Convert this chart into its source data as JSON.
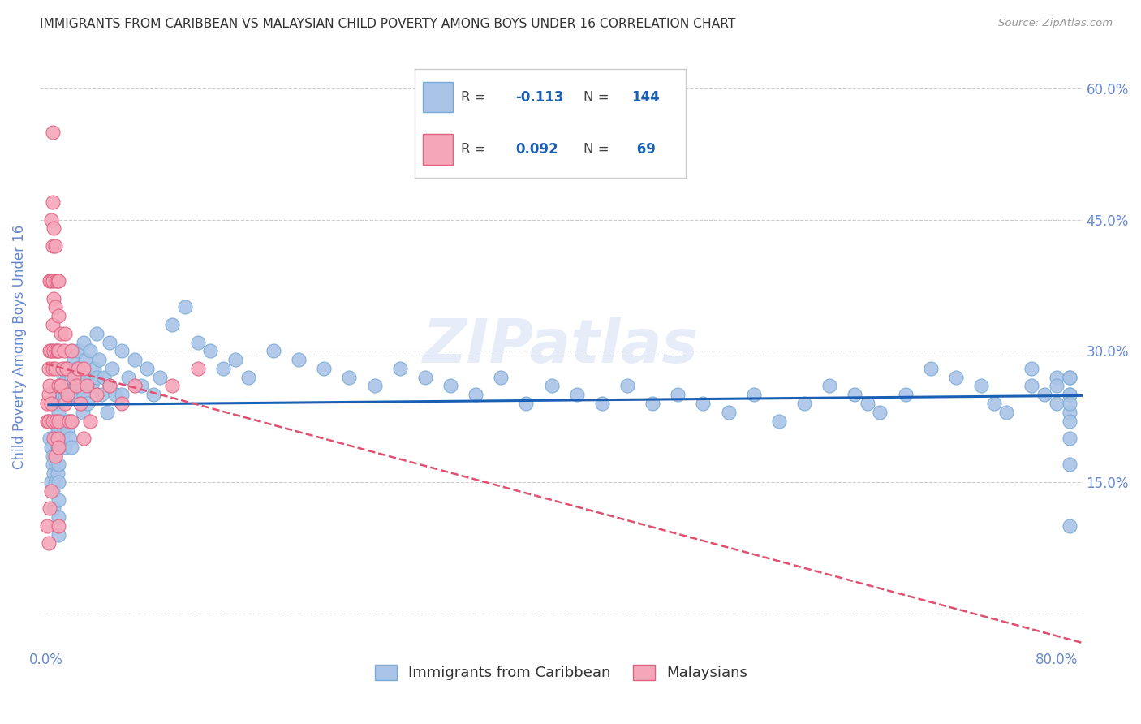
{
  "title": "IMMIGRANTS FROM CARIBBEAN VS MALAYSIAN CHILD POVERTY AMONG BOYS UNDER 16 CORRELATION CHART",
  "source": "Source: ZipAtlas.com",
  "ylabel": "Child Poverty Among Boys Under 16",
  "yticks": [
    0.0,
    0.15,
    0.3,
    0.45,
    0.6
  ],
  "ytick_labels_right": [
    "",
    "15.0%",
    "30.0%",
    "45.0%",
    "60.0%"
  ],
  "xlim": [
    -0.005,
    0.82
  ],
  "ylim": [
    -0.04,
    0.65
  ],
  "watermark": "ZIPatlas",
  "legend": {
    "caribbean_label": "Immigrants from Caribbean",
    "malaysian_label": "Malaysians"
  },
  "caribbean_color": "#aac4e8",
  "malaysian_color": "#f4a7b9",
  "caribbean_edge": "#7aaad4",
  "malaysian_edge": "#e06080",
  "trendline_caribbean_color": "#1a5fb4",
  "trendline_malaysian_color": "#e05070",
  "background_color": "#ffffff",
  "grid_color": "#cccccc",
  "axis_label_color": "#6688cc",
  "caribbean_x": [
    0.002,
    0.003,
    0.004,
    0.004,
    0.005,
    0.005,
    0.005,
    0.006,
    0.006,
    0.007,
    0.007,
    0.007,
    0.008,
    0.008,
    0.008,
    0.009,
    0.009,
    0.009,
    0.009,
    0.01,
    0.01,
    0.01,
    0.01,
    0.01,
    0.01,
    0.01,
    0.01,
    0.01,
    0.012,
    0.012,
    0.013,
    0.013,
    0.014,
    0.014,
    0.015,
    0.015,
    0.015,
    0.016,
    0.016,
    0.017,
    0.017,
    0.018,
    0.018,
    0.019,
    0.019,
    0.02,
    0.02,
    0.02,
    0.02,
    0.02,
    0.022,
    0.023,
    0.024,
    0.025,
    0.025,
    0.026,
    0.027,
    0.028,
    0.029,
    0.03,
    0.03,
    0.031,
    0.032,
    0.033,
    0.035,
    0.036,
    0.038,
    0.04,
    0.04,
    0.042,
    0.044,
    0.046,
    0.048,
    0.05,
    0.05,
    0.052,
    0.055,
    0.06,
    0.06,
    0.065,
    0.07,
    0.075,
    0.08,
    0.085,
    0.09,
    0.1,
    0.11,
    0.12,
    0.13,
    0.14,
    0.15,
    0.16,
    0.18,
    0.2,
    0.22,
    0.24,
    0.26,
    0.28,
    0.3,
    0.32,
    0.34,
    0.36,
    0.38,
    0.4,
    0.42,
    0.44,
    0.46,
    0.48,
    0.5,
    0.52,
    0.54,
    0.56,
    0.58,
    0.6,
    0.62,
    0.64,
    0.65,
    0.66,
    0.68,
    0.7,
    0.72,
    0.74,
    0.75,
    0.76,
    0.78,
    0.78,
    0.79,
    0.8,
    0.8,
    0.8,
    0.81,
    0.81,
    0.81,
    0.81,
    0.81,
    0.81,
    0.81,
    0.81,
    0.81,
    0.81
  ],
  "caribbean_y": [
    0.22,
    0.2,
    0.19,
    0.15,
    0.18,
    0.17,
    0.14,
    0.16,
    0.12,
    0.2,
    0.18,
    0.15,
    0.22,
    0.2,
    0.17,
    0.24,
    0.21,
    0.19,
    0.16,
    0.25,
    0.23,
    0.21,
    0.19,
    0.17,
    0.15,
    0.13,
    0.11,
    0.09,
    0.26,
    0.22,
    0.25,
    0.2,
    0.27,
    0.21,
    0.28,
    0.25,
    0.19,
    0.27,
    0.22,
    0.26,
    0.21,
    0.28,
    0.22,
    0.25,
    0.2,
    0.3,
    0.27,
    0.25,
    0.22,
    0.19,
    0.29,
    0.26,
    0.28,
    0.3,
    0.25,
    0.27,
    0.24,
    0.26,
    0.23,
    0.31,
    0.25,
    0.29,
    0.27,
    0.24,
    0.3,
    0.26,
    0.28,
    0.32,
    0.27,
    0.29,
    0.25,
    0.27,
    0.23,
    0.31,
    0.26,
    0.28,
    0.25,
    0.3,
    0.25,
    0.27,
    0.29,
    0.26,
    0.28,
    0.25,
    0.27,
    0.33,
    0.35,
    0.31,
    0.3,
    0.28,
    0.29,
    0.27,
    0.3,
    0.29,
    0.28,
    0.27,
    0.26,
    0.28,
    0.27,
    0.26,
    0.25,
    0.27,
    0.24,
    0.26,
    0.25,
    0.24,
    0.26,
    0.24,
    0.25,
    0.24,
    0.23,
    0.25,
    0.22,
    0.24,
    0.26,
    0.25,
    0.24,
    0.23,
    0.25,
    0.28,
    0.27,
    0.26,
    0.24,
    0.23,
    0.28,
    0.26,
    0.25,
    0.27,
    0.26,
    0.24,
    0.27,
    0.25,
    0.23,
    0.1,
    0.17,
    0.2,
    0.25,
    0.27,
    0.24,
    0.22
  ],
  "malaysian_x": [
    0.001,
    0.001,
    0.001,
    0.002,
    0.002,
    0.002,
    0.002,
    0.003,
    0.003,
    0.003,
    0.003,
    0.004,
    0.004,
    0.004,
    0.004,
    0.004,
    0.005,
    0.005,
    0.005,
    0.005,
    0.005,
    0.005,
    0.005,
    0.006,
    0.006,
    0.006,
    0.006,
    0.007,
    0.007,
    0.007,
    0.007,
    0.008,
    0.008,
    0.008,
    0.009,
    0.009,
    0.009,
    0.01,
    0.01,
    0.01,
    0.01,
    0.01,
    0.01,
    0.01,
    0.012,
    0.012,
    0.013,
    0.014,
    0.015,
    0.015,
    0.016,
    0.017,
    0.018,
    0.02,
    0.02,
    0.022,
    0.024,
    0.025,
    0.027,
    0.03,
    0.03,
    0.032,
    0.035,
    0.04,
    0.05,
    0.06,
    0.07,
    0.1,
    0.12
  ],
  "malaysian_y": [
    0.24,
    0.22,
    0.1,
    0.28,
    0.25,
    0.22,
    0.08,
    0.38,
    0.3,
    0.26,
    0.12,
    0.45,
    0.38,
    0.3,
    0.24,
    0.14,
    0.55,
    0.47,
    0.42,
    0.38,
    0.33,
    0.28,
    0.22,
    0.44,
    0.36,
    0.3,
    0.2,
    0.42,
    0.35,
    0.28,
    0.18,
    0.38,
    0.3,
    0.22,
    0.38,
    0.3,
    0.2,
    0.38,
    0.34,
    0.3,
    0.26,
    0.22,
    0.19,
    0.1,
    0.32,
    0.26,
    0.28,
    0.3,
    0.32,
    0.24,
    0.28,
    0.25,
    0.22,
    0.3,
    0.22,
    0.27,
    0.26,
    0.28,
    0.24,
    0.28,
    0.2,
    0.26,
    0.22,
    0.25,
    0.26,
    0.24,
    0.26,
    0.26,
    0.28
  ]
}
